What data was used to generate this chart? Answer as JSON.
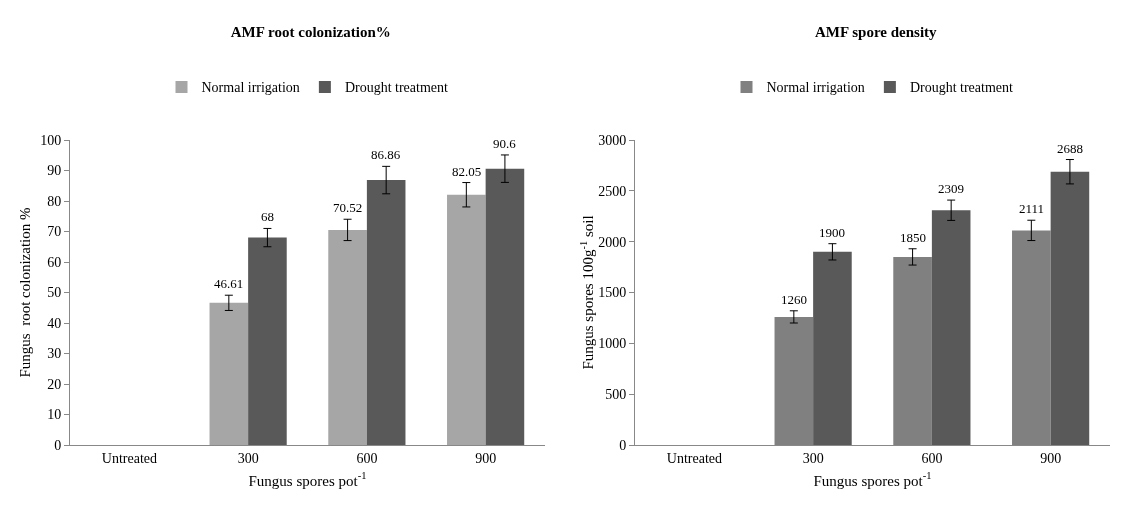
{
  "chart_data": [
    {
      "type": "bar",
      "title": "AMF root colonization%",
      "xlabel": "Fungus spores pot$^{-1}$",
      "ylabel": "Fungus  root colonization %",
      "categories": [
        "Untreated",
        "300",
        "600",
        "900"
      ],
      "series": [
        {
          "name": "Normal irrigation",
          "color": "#a6a6a6",
          "values": [
            null,
            46.61,
            70.52,
            82.05
          ],
          "errors": [
            null,
            2.5,
            3.5,
            4
          ],
          "value_labels": [
            null,
            "46.61",
            "70.52",
            "82.05"
          ]
        },
        {
          "name": "Drought treatment",
          "color": "#595959",
          "values": [
            null,
            68,
            86.86,
            90.6
          ],
          "errors": [
            null,
            3,
            4.5,
            4.5
          ],
          "value_labels": [
            null,
            "68",
            "86.86",
            "90.6"
          ]
        }
      ],
      "ylim": [
        0,
        100
      ],
      "yticks": [
        0,
        10,
        20,
        30,
        40,
        50,
        60,
        70,
        80,
        90,
        100
      ],
      "grid": false,
      "legend": "top"
    },
    {
      "type": "bar",
      "title": "AMF spore density",
      "xlabel": "Fungus spores pot$^{-1}$",
      "ylabel": "Fungus spores 100g$^{-1}$ soil",
      "categories": [
        "Untreated",
        "300",
        "600",
        "900"
      ],
      "series": [
        {
          "name": "Normal irrigation",
          "color": "#808080",
          "values": [
            null,
            1260,
            1850,
            2111
          ],
          "errors": [
            null,
            60,
            80,
            100
          ],
          "value_labels": [
            null,
            "1260",
            "1850",
            "2111"
          ]
        },
        {
          "name": "Drought treatment",
          "color": "#595959",
          "values": [
            null,
            1900,
            2309,
            2688
          ],
          "errors": [
            null,
            80,
            100,
            120
          ],
          "value_labels": [
            null,
            "1900",
            "2309",
            "2688"
          ]
        }
      ],
      "ylim": [
        0,
        3000
      ],
      "yticks": [
        0,
        500,
        1000,
        1500,
        2000,
        2500,
        3000
      ],
      "grid": false,
      "legend": "top"
    }
  ]
}
